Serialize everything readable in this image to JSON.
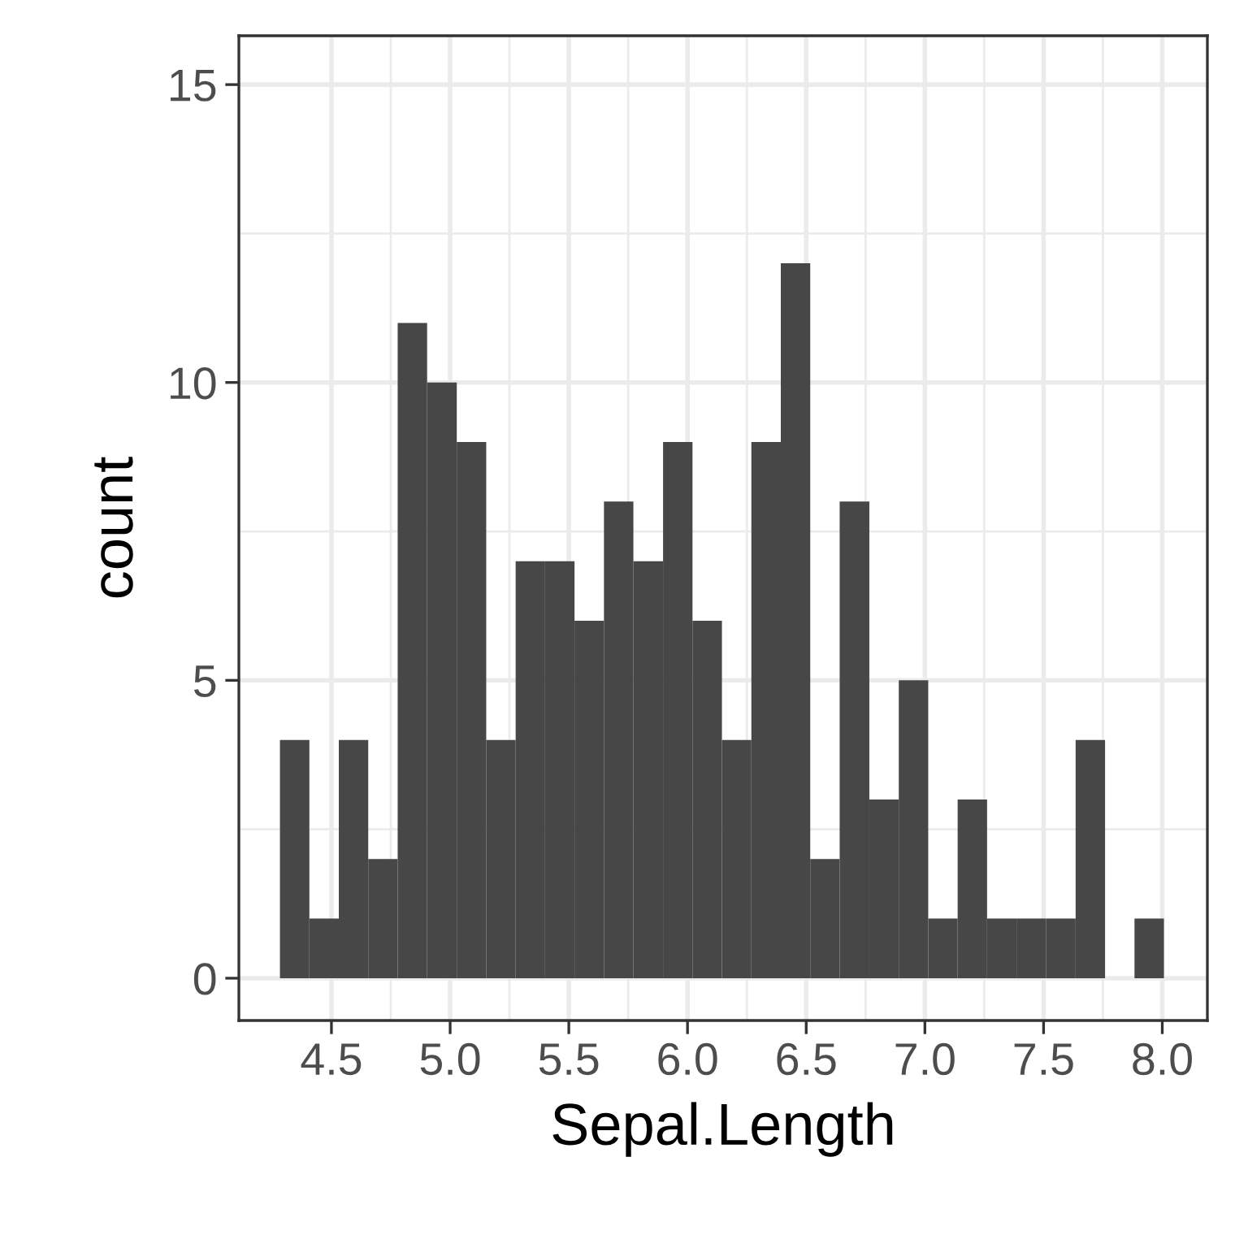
{
  "chart_data": {
    "type": "histogram",
    "xlabel": "Sepal.Length",
    "ylabel": "count",
    "bins": [
      4.283,
      4.407,
      4.531,
      4.655,
      4.779,
      4.903,
      5.028,
      5.152,
      5.276,
      5.4,
      5.524,
      5.648,
      5.772,
      5.897,
      6.021,
      6.145,
      6.269,
      6.393,
      6.517,
      6.641,
      6.766,
      6.89,
      7.014,
      7.138,
      7.262,
      7.386,
      7.51,
      7.635,
      7.759,
      7.883,
      8.007
    ],
    "values": [
      4,
      1,
      4,
      2,
      11,
      10,
      9,
      4,
      7,
      7,
      6,
      8,
      7,
      9,
      6,
      4,
      9,
      12,
      2,
      8,
      3,
      5,
      1,
      3,
      1,
      1,
      1,
      4,
      0,
      1
    ],
    "color": "#474747",
    "xlim": [
      4.11,
      8.19
    ],
    "ylim": [
      -0.71,
      15.82
    ],
    "xticks": [
      {
        "value": 4.5,
        "label": "4.5"
      },
      {
        "value": 5.0,
        "label": "5.0"
      },
      {
        "value": 5.5,
        "label": "5.5"
      },
      {
        "value": 6.0,
        "label": "6.0"
      },
      {
        "value": 6.5,
        "label": "6.5"
      },
      {
        "value": 7.0,
        "label": "7.0"
      },
      {
        "value": 7.5,
        "label": "7.5"
      },
      {
        "value": 8.0,
        "label": "8.0"
      }
    ],
    "yticks": [
      0,
      5,
      10,
      15
    ],
    "grid": true
  }
}
